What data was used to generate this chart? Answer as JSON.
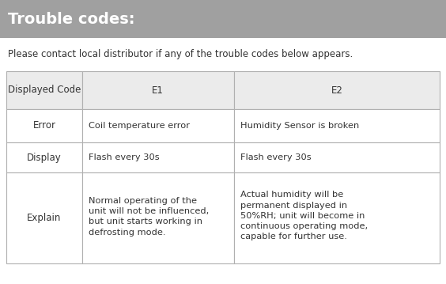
{
  "title": "Trouble codes:",
  "subtitle": "Please contact local distributor if any of the trouble codes below appears.",
  "header_bg": "#a0a0a0",
  "title_color": "#ffffff",
  "title_fontsize": 14,
  "subtitle_fontsize": 8.5,
  "table_header_bg": "#ebebeb",
  "table_bg": "#ffffff",
  "border_color": "#b0b0b0",
  "text_color": "#333333",
  "col_labels": [
    "Displayed Code",
    "E1",
    "E2"
  ],
  "row_labels": [
    "Error",
    "Display",
    "Explain"
  ],
  "cell_data": [
    [
      "Coil temperature error",
      "Humidity Sensor is broken"
    ],
    [
      "Flash every 30s",
      "Flash every 30s"
    ],
    [
      "Normal operating of the\nunit will not be influenced,\nbut unit starts working in\ndefrosting mode.",
      "Actual humidity will be\npermanent displayed in\n50%RH; unit will become in\ncontinuous operating mode,\ncapable for further use."
    ]
  ],
  "figsize": [
    5.64,
    3.59
  ],
  "dpi": 100
}
